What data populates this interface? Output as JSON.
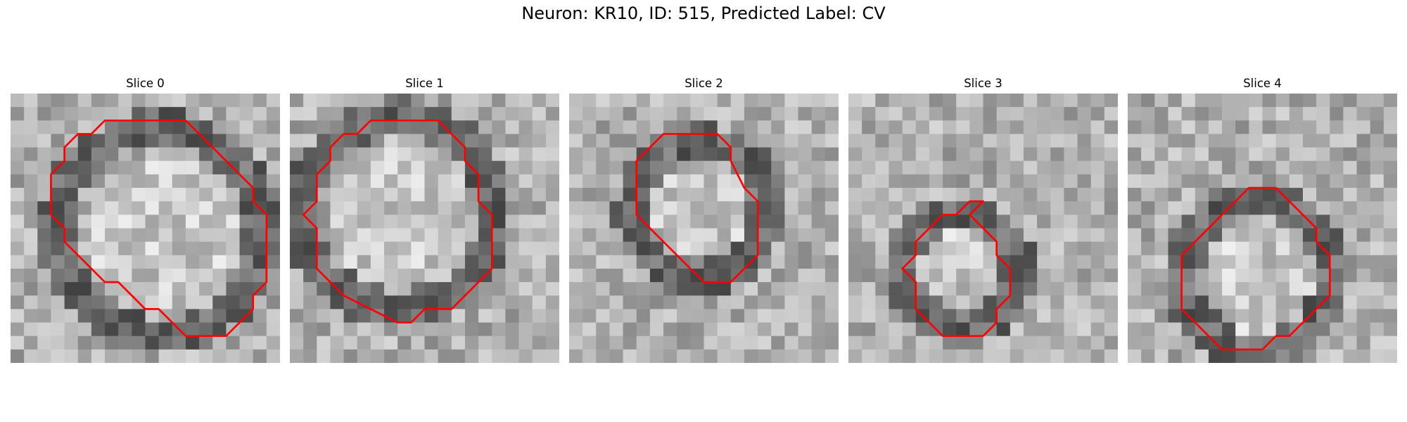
{
  "figure": {
    "title": "Neuron: KR10, ID: 515, Predicted Label: CV",
    "panels": [
      {
        "title": "Slice 0",
        "contour": [
          [
            13,
            2
          ],
          [
            7,
            2
          ],
          [
            6,
            3
          ],
          [
            5,
            3
          ],
          [
            4,
            4
          ],
          [
            4,
            5
          ],
          [
            3,
            6
          ],
          [
            3,
            9
          ],
          [
            4,
            10
          ],
          [
            4,
            11
          ],
          [
            5,
            12
          ],
          [
            6,
            13
          ],
          [
            7,
            14
          ],
          [
            8,
            14
          ],
          [
            9,
            15
          ],
          [
            10,
            16
          ],
          [
            11,
            16
          ],
          [
            12,
            17
          ],
          [
            13,
            18
          ],
          [
            15,
            18
          ],
          [
            16,
            18
          ],
          [
            17,
            17
          ],
          [
            18,
            16
          ],
          [
            18,
            15
          ],
          [
            19,
            14
          ],
          [
            19,
            9
          ],
          [
            18,
            8
          ],
          [
            18,
            7
          ],
          [
            17,
            6
          ],
          [
            16,
            5
          ],
          [
            15,
            4
          ],
          [
            14,
            3
          ]
        ]
      },
      {
        "title": "Slice 1",
        "contour": [
          [
            8,
            2
          ],
          [
            6,
            2
          ],
          [
            5,
            3
          ],
          [
            4,
            3
          ],
          [
            3,
            4
          ],
          [
            3,
            5
          ],
          [
            2,
            6
          ],
          [
            2,
            8
          ],
          [
            1,
            9
          ],
          [
            2,
            10
          ],
          [
            2,
            13
          ],
          [
            3,
            14
          ],
          [
            4,
            15
          ],
          [
            6,
            16
          ],
          [
            8,
            17
          ],
          [
            9,
            17
          ],
          [
            10,
            16
          ],
          [
            12,
            16
          ],
          [
            13,
            15
          ],
          [
            14,
            14
          ],
          [
            15,
            13
          ],
          [
            15,
            9
          ],
          [
            14,
            8
          ],
          [
            14,
            6
          ],
          [
            13,
            5
          ],
          [
            13,
            4
          ],
          [
            12,
            3
          ],
          [
            11,
            2
          ],
          [
            9,
            2
          ]
        ]
      },
      {
        "title": "Slice 2",
        "contour": [
          [
            10,
            3
          ],
          [
            7,
            3
          ],
          [
            6,
            4
          ],
          [
            5,
            5
          ],
          [
            5,
            9
          ],
          [
            6,
            10
          ],
          [
            7,
            11
          ],
          [
            8,
            12
          ],
          [
            9,
            13
          ],
          [
            10,
            14
          ],
          [
            11,
            14
          ],
          [
            12,
            14
          ],
          [
            13,
            13
          ],
          [
            14,
            12
          ],
          [
            14,
            8
          ],
          [
            13,
            7
          ],
          [
            12,
            5
          ],
          [
            12,
            4
          ],
          [
            11,
            3
          ]
        ]
      },
      {
        "title": "Slice 3",
        "contour": [
          [
            10,
            8
          ],
          [
            9,
            8
          ],
          [
            8,
            9
          ],
          [
            7,
            9
          ],
          [
            6,
            10
          ],
          [
            5,
            11
          ],
          [
            5,
            12
          ],
          [
            4,
            13
          ],
          [
            5,
            14
          ],
          [
            5,
            16
          ],
          [
            6,
            17
          ],
          [
            7,
            18
          ],
          [
            8,
            18
          ],
          [
            9,
            18
          ],
          [
            10,
            18
          ],
          [
            11,
            17
          ],
          [
            11,
            16
          ],
          [
            12,
            15
          ],
          [
            12,
            13
          ],
          [
            11,
            12
          ],
          [
            11,
            11
          ],
          [
            10,
            10
          ],
          [
            9,
            9
          ]
        ]
      },
      {
        "title": "Slice 4",
        "contour": [
          [
            11,
            7
          ],
          [
            9,
            7
          ],
          [
            8,
            8
          ],
          [
            7,
            9
          ],
          [
            6,
            10
          ],
          [
            5,
            11
          ],
          [
            4,
            12
          ],
          [
            4,
            16
          ],
          [
            5,
            17
          ],
          [
            6,
            18
          ],
          [
            7,
            19
          ],
          [
            8,
            19
          ],
          [
            9,
            19
          ],
          [
            10,
            19
          ],
          [
            11,
            18
          ],
          [
            12,
            18
          ],
          [
            13,
            17
          ],
          [
            14,
            16
          ],
          [
            15,
            15
          ],
          [
            15,
            12
          ],
          [
            14,
            11
          ],
          [
            14,
            10
          ],
          [
            13,
            9
          ],
          [
            12,
            8
          ]
        ]
      }
    ]
  }
}
